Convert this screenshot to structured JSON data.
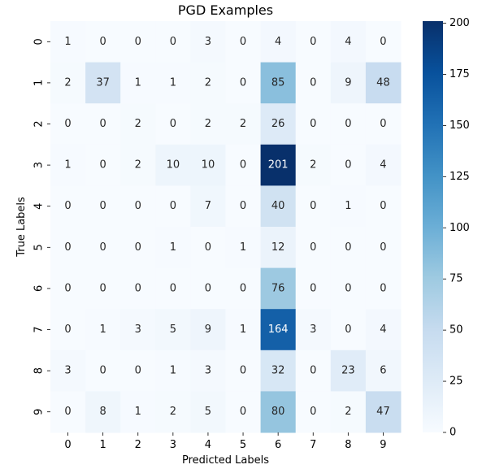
{
  "chart_data": {
    "type": "heatmap",
    "title": "PGD Examples",
    "xlabel": "Predicted Labels",
    "ylabel": "True Labels",
    "x_categories": [
      "0",
      "1",
      "2",
      "3",
      "4",
      "5",
      "6",
      "7",
      "8",
      "9"
    ],
    "y_categories": [
      "0",
      "1",
      "2",
      "3",
      "4",
      "5",
      "6",
      "7",
      "8",
      "9"
    ],
    "values": [
      [
        1,
        0,
        0,
        0,
        3,
        0,
        4,
        0,
        4,
        0
      ],
      [
        2,
        37,
        1,
        1,
        2,
        0,
        85,
        0,
        9,
        48
      ],
      [
        0,
        0,
        2,
        0,
        2,
        2,
        26,
        0,
        0,
        0
      ],
      [
        1,
        0,
        2,
        10,
        10,
        0,
        201,
        2,
        0,
        4
      ],
      [
        0,
        0,
        0,
        0,
        7,
        0,
        40,
        0,
        1,
        0
      ],
      [
        0,
        0,
        0,
        1,
        0,
        1,
        12,
        0,
        0,
        0
      ],
      [
        0,
        0,
        0,
        0,
        0,
        0,
        76,
        0,
        0,
        0
      ],
      [
        0,
        1,
        3,
        5,
        9,
        1,
        164,
        3,
        0,
        4
      ],
      [
        3,
        0,
        0,
        1,
        3,
        0,
        32,
        0,
        23,
        6
      ],
      [
        0,
        8,
        1,
        2,
        5,
        0,
        80,
        0,
        2,
        47
      ]
    ],
    "colormap": "Blues",
    "vmin": 0,
    "vmax": 201,
    "annotate": true,
    "grid": false,
    "colorbar": {
      "placement": "right",
      "ticks": [
        0,
        25,
        50,
        75,
        100,
        125,
        150,
        175,
        200
      ]
    }
  }
}
